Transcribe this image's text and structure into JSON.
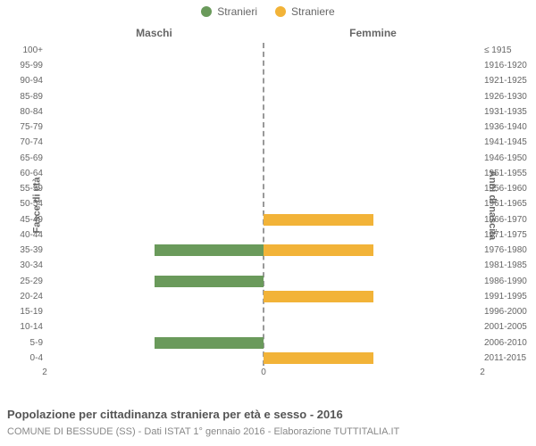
{
  "legend": {
    "male": {
      "label": "Stranieri",
      "color": "#6a9a5b"
    },
    "female": {
      "label": "Straniere",
      "color": "#f2b338"
    }
  },
  "headings": {
    "left": "Maschi",
    "right": "Femmine"
  },
  "axis_labels": {
    "left": "Fasce di età",
    "right": "Anni di nascita"
  },
  "chart": {
    "type": "population-pyramid",
    "xmax": 2,
    "x_ticks": [
      2,
      0,
      2
    ],
    "bar_colors": {
      "male": "#6a9a5b",
      "female": "#f2b338"
    },
    "background_color": "#ffffff",
    "center_line_color": "#999999",
    "tick_color": "#666666",
    "label_fontsize": 10,
    "heading_fontsize": 12,
    "rows": [
      {
        "age": "100+",
        "birth": "≤ 1915",
        "male": 0,
        "female": 0
      },
      {
        "age": "95-99",
        "birth": "1916-1920",
        "male": 0,
        "female": 0
      },
      {
        "age": "90-94",
        "birth": "1921-1925",
        "male": 0,
        "female": 0
      },
      {
        "age": "85-89",
        "birth": "1926-1930",
        "male": 0,
        "female": 0
      },
      {
        "age": "80-84",
        "birth": "1931-1935",
        "male": 0,
        "female": 0
      },
      {
        "age": "75-79",
        "birth": "1936-1940",
        "male": 0,
        "female": 0
      },
      {
        "age": "70-74",
        "birth": "1941-1945",
        "male": 0,
        "female": 0
      },
      {
        "age": "65-69",
        "birth": "1946-1950",
        "male": 0,
        "female": 0
      },
      {
        "age": "60-64",
        "birth": "1951-1955",
        "male": 0,
        "female": 0
      },
      {
        "age": "55-59",
        "birth": "1956-1960",
        "male": 0,
        "female": 0
      },
      {
        "age": "50-54",
        "birth": "1961-1965",
        "male": 0,
        "female": 0
      },
      {
        "age": "45-49",
        "birth": "1966-1970",
        "male": 0,
        "female": 1
      },
      {
        "age": "40-44",
        "birth": "1971-1975",
        "male": 0,
        "female": 0
      },
      {
        "age": "35-39",
        "birth": "1976-1980",
        "male": 1,
        "female": 1
      },
      {
        "age": "30-34",
        "birth": "1981-1985",
        "male": 0,
        "female": 0
      },
      {
        "age": "25-29",
        "birth": "1986-1990",
        "male": 1,
        "female": 0
      },
      {
        "age": "20-24",
        "birth": "1991-1995",
        "male": 0,
        "female": 1
      },
      {
        "age": "15-19",
        "birth": "1996-2000",
        "male": 0,
        "female": 0
      },
      {
        "age": "10-14",
        "birth": "2001-2005",
        "male": 0,
        "female": 0
      },
      {
        "age": "5-9",
        "birth": "2006-2010",
        "male": 1,
        "female": 0
      },
      {
        "age": "0-4",
        "birth": "2011-2015",
        "male": 0,
        "female": 1
      }
    ]
  },
  "caption": "Popolazione per cittadinanza straniera per età e sesso - 2016",
  "subcaption": "COMUNE DI BESSUDE (SS) - Dati ISTAT 1° gennaio 2016 - Elaborazione TUTTITALIA.IT"
}
